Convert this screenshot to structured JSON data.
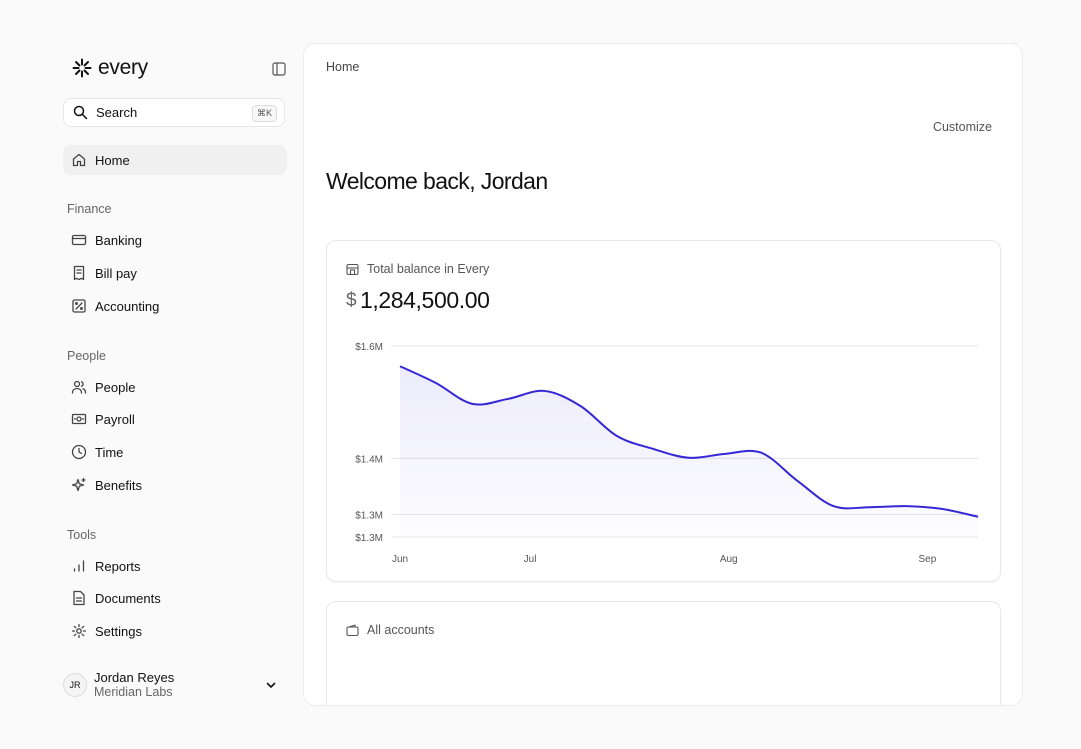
{
  "sidebar": {
    "brand": "every",
    "search": {
      "placeholder": "Search",
      "shortcut": "⌘K"
    },
    "home": "Home",
    "sections": [
      {
        "title": "Finance",
        "items": [
          "Banking",
          "Bill pay",
          "Accounting"
        ]
      },
      {
        "title": "People",
        "items": [
          "People",
          "Payroll",
          "Time",
          "Benefits"
        ]
      },
      {
        "title": "Tools",
        "items": [
          "Reports",
          "Documents",
          "Settings"
        ]
      }
    ],
    "user": {
      "initials": "JR",
      "name": "Jordan Reyes",
      "org": "Meridian Labs"
    }
  },
  "main": {
    "breadcrumb": "Home",
    "customize": "Customize",
    "welcome": "Welcome back, Jordan",
    "balance_card": {
      "label": "Total balance in Every",
      "currency": "$",
      "amount": "1,284,500.00"
    },
    "accounts_card": {
      "label": "All accounts"
    }
  },
  "chart_data": {
    "type": "line",
    "x": [
      0,
      1,
      2,
      3,
      4,
      5,
      6,
      7,
      8,
      9,
      10,
      11,
      12,
      13,
      14,
      15,
      16
    ],
    "series": [
      {
        "color": "#3527d6",
        "values": [
          1564000,
          1534000,
          1497000,
          1506000,
          1520000,
          1493000,
          1440000,
          1417000,
          1401000,
          1408000,
          1410000,
          1360000,
          1315000,
          1313000,
          1315000,
          1310000,
          1296000
        ]
      }
    ],
    "xlim": [
      0,
      16
    ],
    "xticks": [
      {
        "value": 0,
        "label": "Jun"
      },
      {
        "value": 3.6,
        "label": "Jul"
      },
      {
        "value": 9.1,
        "label": "Aug"
      },
      {
        "value": 14.6,
        "label": "Sep"
      }
    ],
    "ylim": [
      1260000,
      1600000
    ],
    "yticks": [
      {
        "value": 1600000,
        "label": "$1.6M"
      },
      {
        "value": 1400000,
        "label": "$1.4M"
      },
      {
        "value": 1300000,
        "label": "$1.3M"
      },
      {
        "value": 1260000,
        "label": "$1.3M"
      }
    ],
    "grid": true
  }
}
